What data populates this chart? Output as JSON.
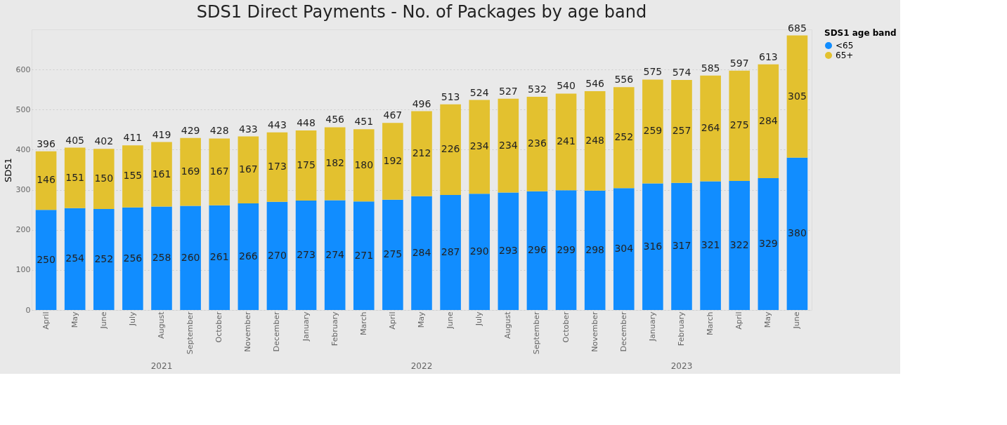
{
  "chart_data": {
    "type": "bar",
    "title": "SDS1 Direct Payments - No. of Packages by age band",
    "ylabel": "SDS1",
    "legend_title": "SDS1 age band",
    "categories": [
      "April",
      "May",
      "June",
      "July",
      "August",
      "September",
      "October",
      "November",
      "December",
      "January",
      "February",
      "March",
      "April",
      "May",
      "June",
      "July",
      "August",
      "September",
      "October",
      "November",
      "December",
      "January",
      "February",
      "March",
      "April",
      "May",
      "June"
    ],
    "stacked": true,
    "data_labels": true,
    "grid": "y",
    "legend": "top right",
    "series": [
      {
        "name": "<65",
        "color": "#118dff",
        "values": [
          250,
          254,
          252,
          256,
          258,
          260,
          261,
          266,
          270,
          273,
          274,
          271,
          275,
          284,
          287,
          290,
          293,
          296,
          299,
          298,
          304,
          316,
          317,
          321,
          322,
          329,
          380
        ]
      },
      {
        "name": "65+",
        "color": "#e3c12f",
        "values": [
          146,
          151,
          150,
          155,
          161,
          169,
          167,
          167,
          173,
          175,
          182,
          180,
          192,
          212,
          226,
          234,
          234,
          236,
          241,
          248,
          252,
          259,
          257,
          264,
          275,
          284,
          305
        ]
      }
    ],
    "totals": [
      "396",
      "405",
      "402",
      "411",
      "419",
      "429",
      "428",
      "433",
      "443",
      "448",
      "456",
      "451",
      "467",
      "496",
      "513",
      "524",
      "527",
      "532",
      "540",
      "546",
      "556",
      "575",
      "574",
      "585",
      "597",
      "613",
      "685"
    ],
    "ylim": [
      0,
      700
    ],
    "yticks": [
      0,
      100,
      200,
      300,
      400,
      500,
      600
    ],
    "annotations": [
      "2021",
      "2022",
      "2023"
    ]
  }
}
